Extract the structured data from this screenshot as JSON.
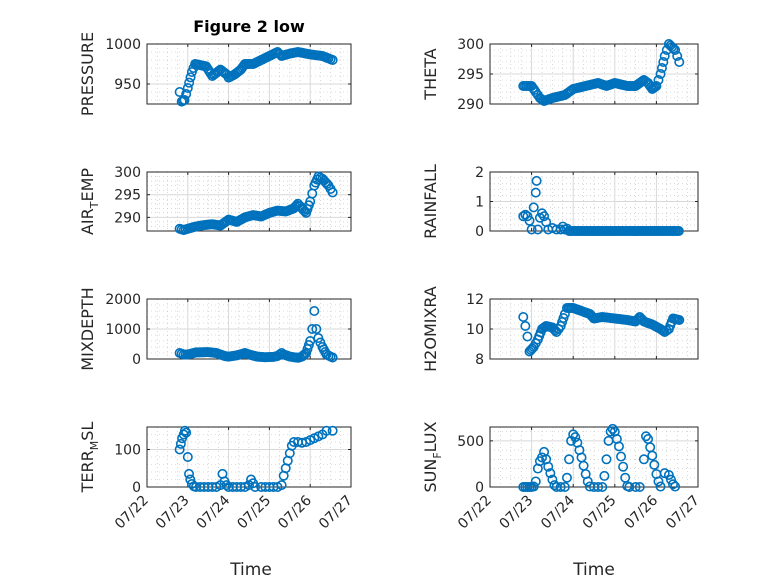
{
  "figure": {
    "title": "Figure 2 low",
    "x_axis_title": "Time",
    "x_tick_labels": [
      "07/22",
      "07/23",
      "07/24",
      "07/25",
      "07/26",
      "07/27"
    ],
    "marker_color": "#0072BD"
  },
  "chart_data": [
    {
      "id": "pressure",
      "type": "scatter",
      "title": "Figure 2 low",
      "ylabel": "PRESSURE",
      "ylabel_sub": "",
      "ylabel_tail": "",
      "xlim": [
        "07/22",
        "07/27"
      ],
      "ylim": [
        925,
        1000
      ],
      "y_ticks": [
        950,
        1000
      ],
      "grid": true,
      "knots": [
        [
          0.8,
          940
        ],
        [
          0.85,
          928
        ],
        [
          0.92,
          930
        ],
        [
          1.0,
          945
        ],
        [
          1.1,
          965
        ],
        [
          1.18,
          975
        ],
        [
          1.45,
          972
        ],
        [
          1.6,
          960
        ],
        [
          1.8,
          968
        ],
        [
          1.95,
          962
        ],
        [
          2.0,
          958
        ],
        [
          2.15,
          962
        ],
        [
          2.3,
          968
        ],
        [
          2.4,
          975
        ],
        [
          2.6,
          975
        ],
        [
          2.8,
          980
        ],
        [
          3.0,
          985
        ],
        [
          3.2,
          990
        ],
        [
          3.3,
          985
        ],
        [
          3.5,
          988
        ],
        [
          3.7,
          990
        ],
        [
          4.0,
          987
        ],
        [
          4.3,
          985
        ],
        [
          4.45,
          982
        ],
        [
          4.55,
          980
        ]
      ]
    },
    {
      "id": "theta",
      "type": "scatter",
      "ylabel": "THETA",
      "ylabel_sub": "",
      "ylabel_tail": "",
      "xlim": [
        "07/22",
        "07/27"
      ],
      "ylim": [
        290,
        300
      ],
      "y_ticks": [
        290,
        295,
        300
      ],
      "grid": true,
      "knots": [
        [
          0.8,
          293
        ],
        [
          1.0,
          293
        ],
        [
          1.1,
          292
        ],
        [
          1.2,
          291
        ],
        [
          1.3,
          290.5
        ],
        [
          1.5,
          291
        ],
        [
          1.8,
          291.5
        ],
        [
          2.0,
          292.5
        ],
        [
          2.3,
          293
        ],
        [
          2.6,
          293.5
        ],
        [
          2.8,
          293
        ],
        [
          3.0,
          293.5
        ],
        [
          3.3,
          293
        ],
        [
          3.5,
          293
        ],
        [
          3.6,
          293.5
        ],
        [
          3.7,
          294
        ],
        [
          3.8,
          293.5
        ],
        [
          3.9,
          292.5
        ],
        [
          4.0,
          293
        ],
        [
          4.1,
          295
        ],
        [
          4.2,
          298
        ],
        [
          4.3,
          300
        ],
        [
          4.45,
          299
        ],
        [
          4.55,
          297
        ]
      ]
    },
    {
      "id": "air_temp",
      "type": "scatter",
      "ylabel": "AIR",
      "ylabel_sub": "T",
      "ylabel_tail": "EMP",
      "xlim": [
        "07/22",
        "07/27"
      ],
      "ylim": [
        287,
        300
      ],
      "y_ticks": [
        290,
        295,
        300
      ],
      "grid": true,
      "knots": [
        [
          0.8,
          287.5
        ],
        [
          0.9,
          287.2
        ],
        [
          1.0,
          287.5
        ],
        [
          1.2,
          288
        ],
        [
          1.4,
          288.3
        ],
        [
          1.6,
          288.5
        ],
        [
          1.8,
          288.2
        ],
        [
          2.0,
          289.5
        ],
        [
          2.2,
          289
        ],
        [
          2.4,
          290
        ],
        [
          2.6,
          290.5
        ],
        [
          2.8,
          290.2
        ],
        [
          3.0,
          291
        ],
        [
          3.2,
          291.5
        ],
        [
          3.4,
          291.3
        ],
        [
          3.6,
          292
        ],
        [
          3.7,
          293
        ],
        [
          3.8,
          292
        ],
        [
          3.9,
          291
        ],
        [
          4.0,
          293.5
        ],
        [
          4.1,
          297
        ],
        [
          4.2,
          299
        ],
        [
          4.3,
          298.5
        ],
        [
          4.45,
          297
        ],
        [
          4.55,
          295.5
        ]
      ]
    },
    {
      "id": "rainfall",
      "type": "scatter",
      "ylabel": "RAINFALL",
      "ylabel_sub": "",
      "ylabel_tail": "",
      "xlim": [
        "07/22",
        "07/27"
      ],
      "ylim": [
        0,
        2
      ],
      "y_ticks": [
        0,
        1,
        2
      ],
      "grid": true,
      "explicit": [
        [
          0.8,
          0.5
        ],
        [
          0.85,
          0.55
        ],
        [
          0.9,
          0.5
        ],
        [
          0.95,
          0.35
        ],
        [
          1.0,
          0.05
        ],
        [
          1.05,
          0.8
        ],
        [
          1.1,
          1.3
        ],
        [
          1.12,
          1.7
        ],
        [
          1.15,
          0.05
        ],
        [
          1.2,
          0.45
        ],
        [
          1.25,
          0.6
        ],
        [
          1.3,
          0.5
        ],
        [
          1.35,
          0.3
        ],
        [
          1.4,
          0.05
        ],
        [
          1.5,
          0.1
        ],
        [
          1.6,
          0.05
        ],
        [
          1.7,
          0.05
        ],
        [
          1.75,
          0.15
        ],
        [
          1.8,
          0.05
        ],
        [
          1.85,
          0.08
        ]
      ],
      "zero_run": [
        1.9,
        4.55
      ]
    },
    {
      "id": "mixdepth",
      "type": "scatter",
      "ylabel": "MIXDEPTH",
      "ylabel_sub": "",
      "ylabel_tail": "",
      "xlim": [
        "07/22",
        "07/27"
      ],
      "ylim": [
        0,
        2000
      ],
      "y_ticks": [
        0,
        1000,
        2000
      ],
      "grid": true,
      "knots": [
        [
          0.8,
          200
        ],
        [
          0.9,
          150
        ],
        [
          1.0,
          150
        ],
        [
          1.2,
          220
        ],
        [
          1.5,
          230
        ],
        [
          1.7,
          200
        ],
        [
          1.9,
          100
        ],
        [
          2.0,
          80
        ],
        [
          2.2,
          120
        ],
        [
          2.4,
          200
        ],
        [
          2.5,
          150
        ],
        [
          2.7,
          80
        ],
        [
          2.9,
          60
        ],
        [
          3.1,
          70
        ],
        [
          3.2,
          100
        ],
        [
          3.3,
          200
        ],
        [
          3.35,
          150
        ],
        [
          3.5,
          80
        ],
        [
          3.7,
          40
        ],
        [
          3.8,
          80
        ],
        [
          3.9,
          200
        ],
        [
          4.0,
          600
        ],
        [
          4.05,
          1000
        ],
        [
          4.1,
          1600
        ],
        [
          4.15,
          1000
        ],
        [
          4.2,
          700
        ],
        [
          4.3,
          400
        ],
        [
          4.4,
          150
        ],
        [
          4.5,
          80
        ],
        [
          4.55,
          50
        ]
      ]
    },
    {
      "id": "h2omixra",
      "type": "scatter",
      "ylabel": "H2OMIXRA",
      "ylabel_sub": "",
      "ylabel_tail": "",
      "xlim": [
        "07/22",
        "07/27"
      ],
      "ylim": [
        8,
        12
      ],
      "y_ticks": [
        8,
        10,
        12
      ],
      "grid": true,
      "knots": [
        [
          0.8,
          10.8
        ],
        [
          0.85,
          10.2
        ],
        [
          0.9,
          9.5
        ],
        [
          0.95,
          8.5
        ],
        [
          1.05,
          8.8
        ],
        [
          1.15,
          9.3
        ],
        [
          1.25,
          10
        ],
        [
          1.35,
          10.2
        ],
        [
          1.5,
          10.1
        ],
        [
          1.6,
          9.8
        ],
        [
          1.7,
          10.2
        ],
        [
          1.8,
          11
        ],
        [
          1.85,
          11.4
        ],
        [
          2.0,
          11.4
        ],
        [
          2.2,
          11.2
        ],
        [
          2.4,
          11
        ],
        [
          2.5,
          10.7
        ],
        [
          2.7,
          10.8
        ],
        [
          3.0,
          10.7
        ],
        [
          3.3,
          10.6
        ],
        [
          3.5,
          10.5
        ],
        [
          3.6,
          10.8
        ],
        [
          3.7,
          10.5
        ],
        [
          3.9,
          10.3
        ],
        [
          4.1,
          10
        ],
        [
          4.2,
          9.8
        ],
        [
          4.3,
          10
        ],
        [
          4.4,
          10.7
        ],
        [
          4.55,
          10.6
        ]
      ]
    },
    {
      "id": "terr_msl",
      "type": "scatter",
      "ylabel": "TERR",
      "ylabel_sub": "M",
      "ylabel_tail": "SL",
      "xlim": [
        "07/22",
        "07/27"
      ],
      "ylim": [
        0,
        160
      ],
      "y_ticks": [
        0,
        100
      ],
      "grid": true,
      "explicit": [
        [
          0.8,
          100
        ],
        [
          0.83,
          115
        ],
        [
          0.86,
          130
        ],
        [
          0.9,
          140
        ],
        [
          0.93,
          150
        ],
        [
          0.96,
          145
        ],
        [
          1.0,
          80
        ],
        [
          1.03,
          35
        ],
        [
          1.06,
          20
        ],
        [
          1.1,
          8
        ],
        [
          1.15,
          2
        ],
        [
          1.2,
          0
        ],
        [
          1.3,
          0
        ],
        [
          1.4,
          0
        ],
        [
          1.5,
          0
        ],
        [
          1.6,
          0
        ],
        [
          1.7,
          0
        ],
        [
          1.8,
          5
        ],
        [
          1.85,
          35
        ],
        [
          1.9,
          15
        ],
        [
          1.95,
          5
        ],
        [
          2.0,
          0
        ],
        [
          2.1,
          0
        ],
        [
          2.2,
          0
        ],
        [
          2.3,
          0
        ],
        [
          2.4,
          0
        ],
        [
          2.5,
          5
        ],
        [
          2.55,
          20
        ],
        [
          2.6,
          10
        ],
        [
          2.65,
          0
        ],
        [
          2.8,
          0
        ],
        [
          2.9,
          0
        ],
        [
          3.0,
          0
        ],
        [
          3.1,
          0
        ],
        [
          3.2,
          0
        ],
        [
          3.3,
          5
        ],
        [
          3.35,
          30
        ],
        [
          3.4,
          50
        ],
        [
          3.45,
          70
        ],
        [
          3.5,
          90
        ],
        [
          3.55,
          110
        ],
        [
          3.6,
          120
        ],
        [
          3.7,
          120
        ],
        [
          3.8,
          118
        ],
        [
          3.9,
          120
        ],
        [
          4.0,
          125
        ],
        [
          4.1,
          130
        ],
        [
          4.2,
          135
        ],
        [
          4.3,
          140
        ],
        [
          4.4,
          150
        ],
        [
          4.55,
          150
        ]
      ]
    },
    {
      "id": "sun_flux",
      "type": "scatter",
      "ylabel": "SUN",
      "ylabel_sub": "F",
      "ylabel_tail": "LUX",
      "xlim": [
        "07/22",
        "07/27"
      ],
      "ylim": [
        0,
        650
      ],
      "y_ticks": [
        0,
        500
      ],
      "grid": true,
      "explicit": [
        [
          0.8,
          0
        ],
        [
          0.85,
          0
        ],
        [
          0.9,
          0
        ],
        [
          0.95,
          0
        ],
        [
          1.0,
          0
        ],
        [
          1.05,
          5
        ],
        [
          1.1,
          60
        ],
        [
          1.15,
          200
        ],
        [
          1.2,
          280
        ],
        [
          1.25,
          320
        ],
        [
          1.3,
          380
        ],
        [
          1.35,
          300
        ],
        [
          1.4,
          220
        ],
        [
          1.45,
          150
        ],
        [
          1.5,
          80
        ],
        [
          1.55,
          20
        ],
        [
          1.6,
          0
        ],
        [
          1.7,
          0
        ],
        [
          1.8,
          0
        ],
        [
          1.85,
          100
        ],
        [
          1.9,
          300
        ],
        [
          1.95,
          500
        ],
        [
          2.0,
          570
        ],
        [
          2.05,
          540
        ],
        [
          2.1,
          480
        ],
        [
          2.15,
          400
        ],
        [
          2.2,
          320
        ],
        [
          2.25,
          230
        ],
        [
          2.3,
          140
        ],
        [
          2.35,
          60
        ],
        [
          2.4,
          5
        ],
        [
          2.5,
          0
        ],
        [
          2.6,
          0
        ],
        [
          2.7,
          0
        ],
        [
          2.75,
          120
        ],
        [
          2.8,
          300
        ],
        [
          2.85,
          500
        ],
        [
          2.9,
          600
        ],
        [
          2.95,
          630
        ],
        [
          3.0,
          600
        ],
        [
          3.05,
          520
        ],
        [
          3.1,
          440
        ],
        [
          3.15,
          330
        ],
        [
          3.2,
          220
        ],
        [
          3.25,
          100
        ],
        [
          3.3,
          10
        ],
        [
          3.35,
          0
        ],
        [
          3.5,
          0
        ],
        [
          3.6,
          0
        ],
        [
          3.7,
          300
        ],
        [
          3.75,
          550
        ],
        [
          3.8,
          520
        ],
        [
          3.85,
          430
        ],
        [
          3.9,
          340
        ],
        [
          3.95,
          240
        ],
        [
          4.0,
          140
        ],
        [
          4.05,
          60
        ],
        [
          4.1,
          5
        ],
        [
          4.2,
          150
        ],
        [
          4.3,
          130
        ],
        [
          4.35,
          80
        ],
        [
          4.4,
          30
        ],
        [
          4.45,
          5
        ]
      ]
    }
  ]
}
